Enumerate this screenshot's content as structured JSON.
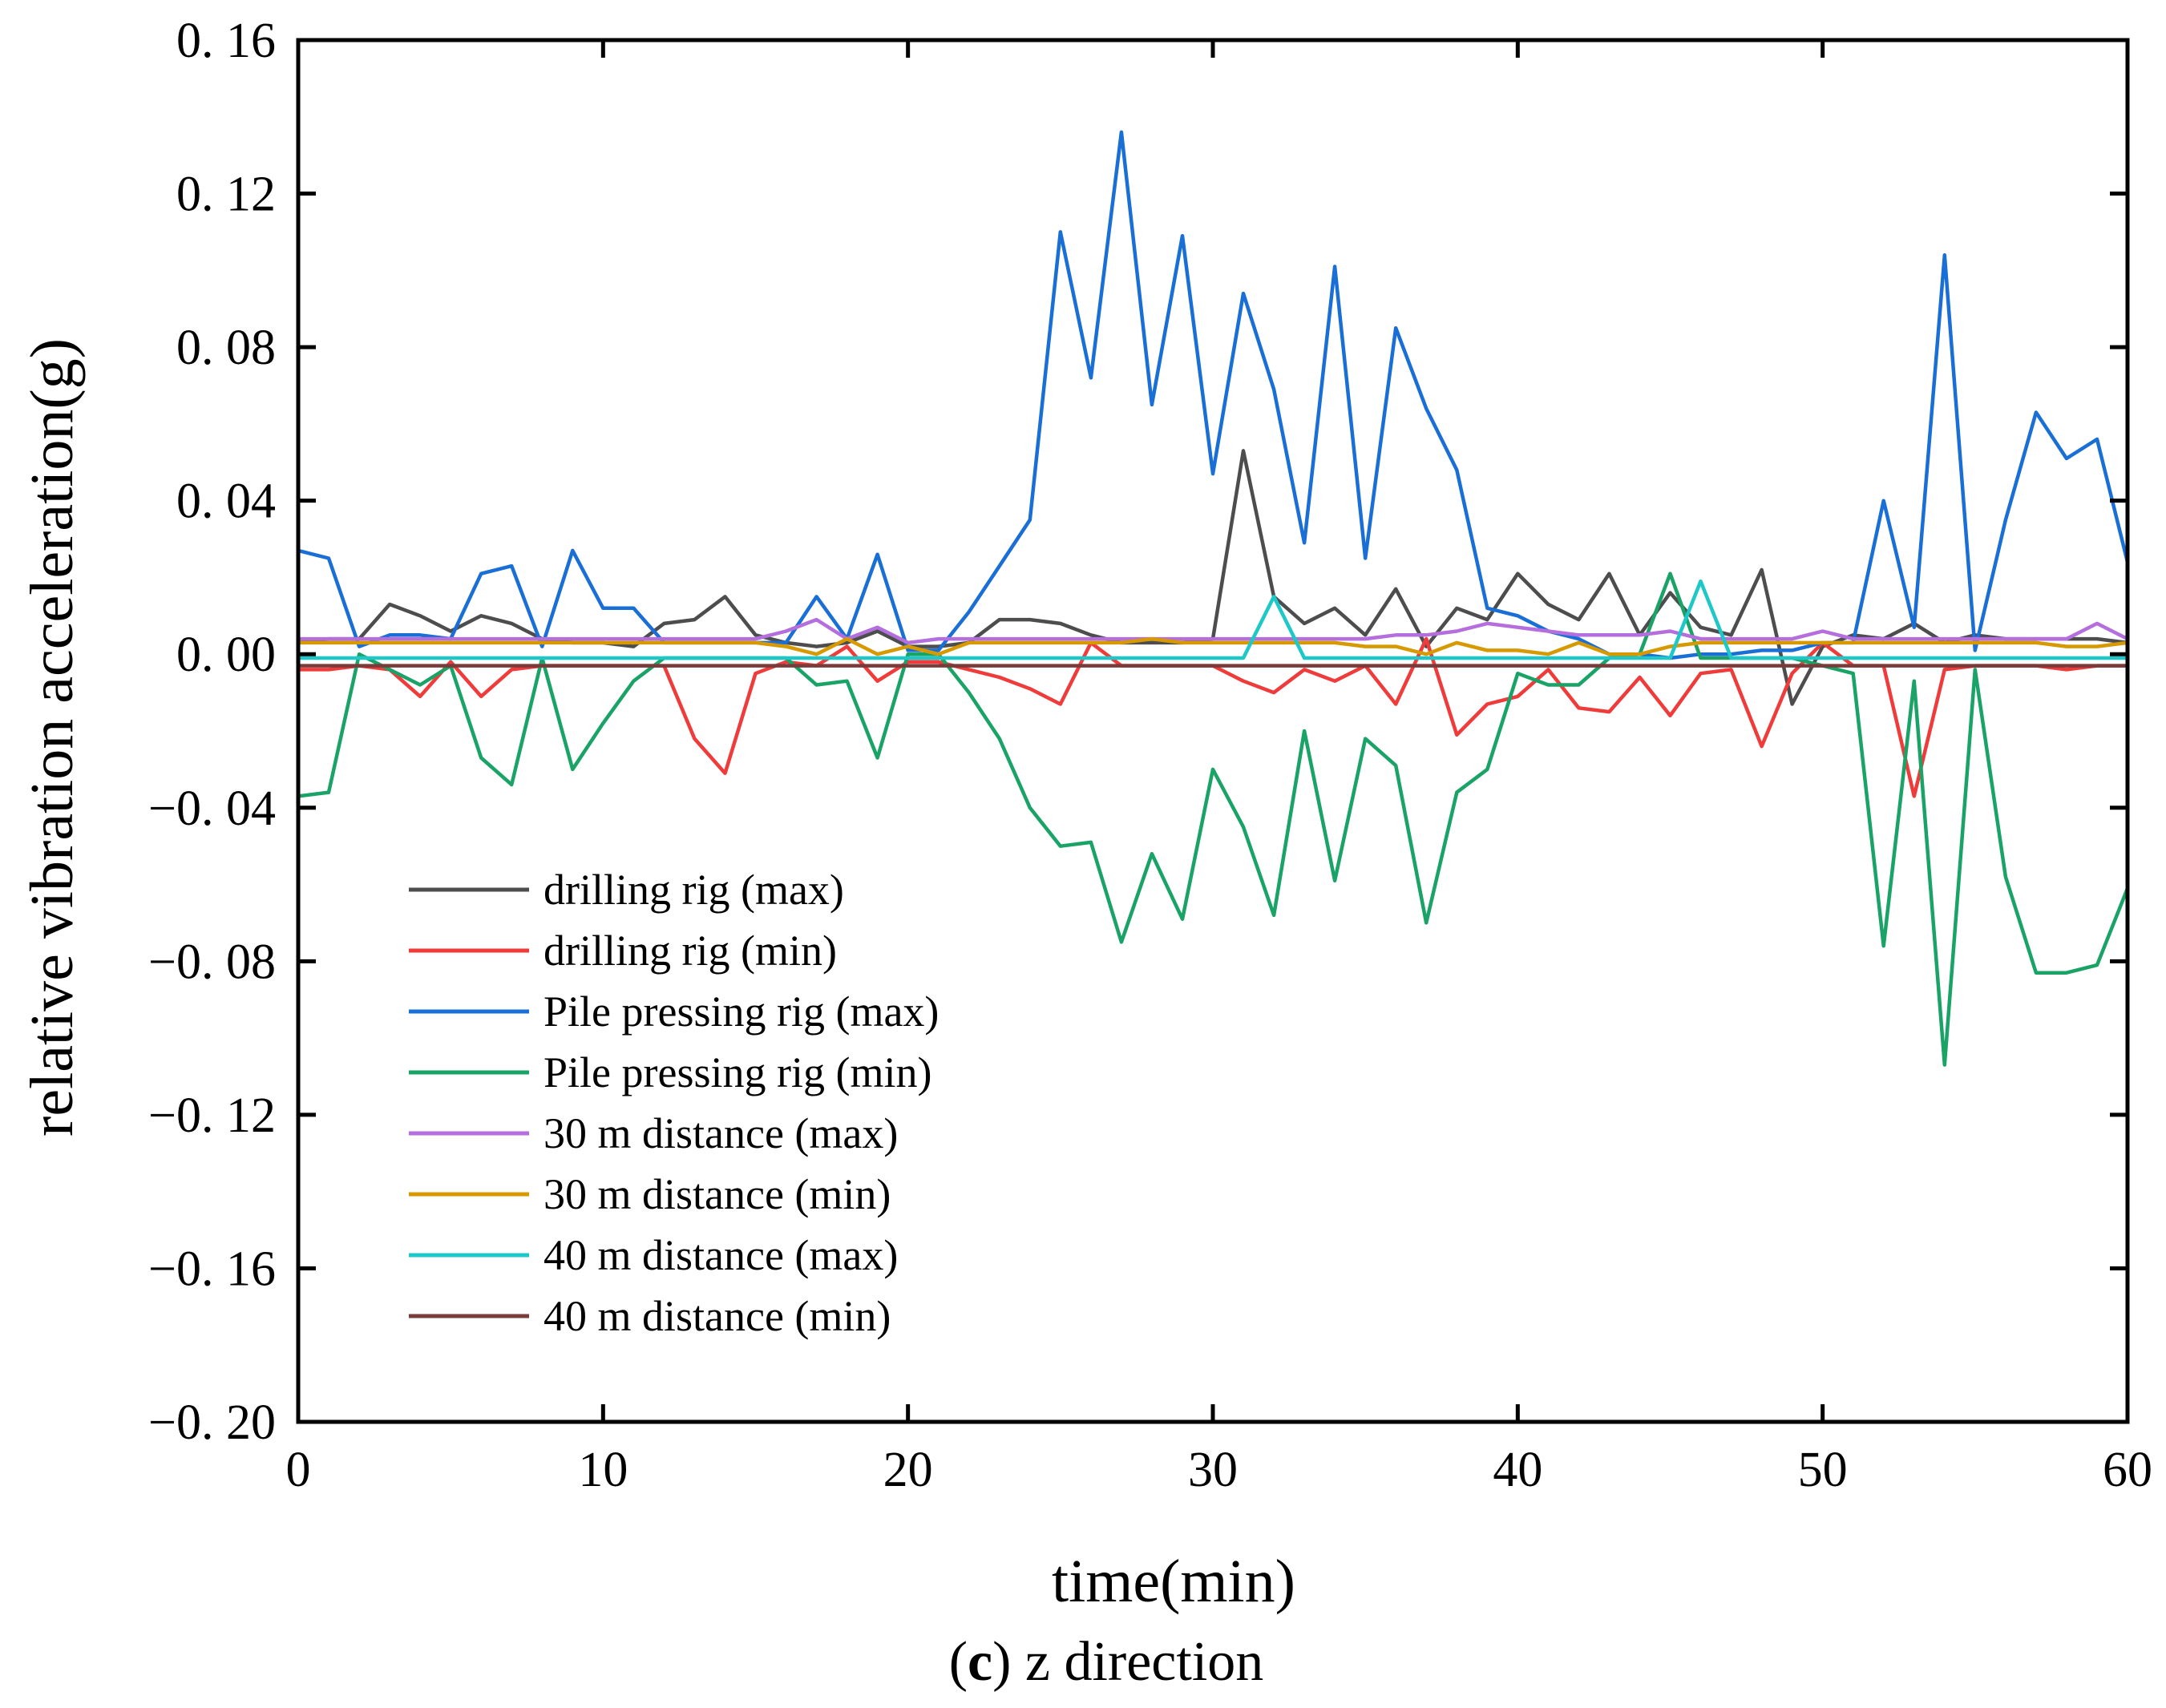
{
  "chart_data": {
    "type": "line",
    "title": "",
    "xlabel": "time(min)",
    "ylabel": "relative vibration acceleration(g)",
    "caption": {
      "label": "c",
      "open": "(",
      "close": ")",
      "text": " z direction"
    },
    "xlim": [
      0,
      60
    ],
    "ylim": [
      -0.2,
      0.16
    ],
    "xticks": [
      0,
      10,
      20,
      30,
      40,
      50,
      60
    ],
    "xtick_labels": [
      "0",
      "10",
      "20",
      "30",
      "40",
      "50",
      "60"
    ],
    "yticks": [
      0.16,
      0.12,
      0.08,
      0.04,
      0.0,
      -0.04,
      -0.08,
      -0.12,
      -0.16,
      -0.2
    ],
    "ytick_labels": [
      "0. 16",
      "0. 12",
      "0. 08",
      "0. 04",
      "0. 00",
      "−0. 04",
      "−0. 08",
      "−0. 12",
      "−0. 16",
      "−0. 20"
    ],
    "grid": false,
    "legend_position": "lower-left",
    "x": [
      0,
      1,
      2,
      3,
      4,
      5,
      6,
      7,
      8,
      9,
      10,
      11,
      12,
      13,
      14,
      15,
      16,
      17,
      18,
      19,
      20,
      21,
      22,
      23,
      24,
      25,
      26,
      27,
      28,
      29,
      30,
      31,
      32,
      33,
      34,
      35,
      36,
      37,
      38,
      39,
      40,
      41,
      42,
      43,
      44,
      45,
      46,
      47,
      48,
      49,
      50,
      51,
      52,
      53,
      54,
      55,
      56,
      57,
      58,
      59,
      60
    ],
    "series": [
      {
        "name": "drilling rig (max)",
        "color": "#4d4d4d",
        "values": [
          0.003,
          0.004,
          0.004,
          0.013,
          0.01,
          0.006,
          0.01,
          0.008,
          0.004,
          0.003,
          0.003,
          0.002,
          0.008,
          0.009,
          0.015,
          0.005,
          0.003,
          0.002,
          0.003,
          0.006,
          0.002,
          0.002,
          0.003,
          0.009,
          0.009,
          0.008,
          0.005,
          0.003,
          0.003,
          0.003,
          0.004,
          0.053,
          0.015,
          0.008,
          0.012,
          0.005,
          0.017,
          0.002,
          0.012,
          0.009,
          0.021,
          0.013,
          0.009,
          0.021,
          0.005,
          0.016,
          0.007,
          0.005,
          0.022,
          -0.013,
          0.002,
          0.005,
          0.004,
          0.008,
          0.003,
          0.005,
          0.004,
          0.004,
          0.004,
          0.004,
          0.003
        ]
      },
      {
        "name": "drilling rig (min)",
        "color": "#f03b3b",
        "values": [
          -0.004,
          -0.004,
          -0.003,
          -0.004,
          -0.011,
          -0.002,
          -0.011,
          -0.004,
          -0.003,
          -0.003,
          -0.003,
          -0.003,
          -0.003,
          -0.022,
          -0.031,
          -0.005,
          -0.002,
          -0.003,
          0.002,
          -0.007,
          -0.002,
          -0.002,
          -0.004,
          -0.006,
          -0.009,
          -0.013,
          0.003,
          -0.003,
          -0.003,
          -0.003,
          -0.003,
          -0.007,
          -0.01,
          -0.004,
          -0.007,
          -0.003,
          -0.013,
          0.004,
          -0.021,
          -0.013,
          -0.011,
          -0.004,
          -0.014,
          -0.015,
          -0.006,
          -0.016,
          -0.005,
          -0.004,
          -0.024,
          -0.005,
          0.003,
          -0.003,
          -0.003,
          -0.037,
          -0.004,
          -0.003,
          -0.003,
          -0.003,
          -0.004,
          -0.003,
          -0.003
        ]
      },
      {
        "name": "Pile pressing rig (max)",
        "color": "#1a6fd6",
        "values": [
          0.027,
          0.025,
          0.002,
          0.005,
          0.005,
          0.004,
          0.021,
          0.023,
          0.002,
          0.027,
          0.012,
          0.012,
          0.003,
          0.003,
          0.003,
          0.003,
          0.003,
          0.015,
          0.004,
          0.026,
          0.001,
          0.001,
          0.011,
          0.023,
          0.035,
          0.11,
          0.072,
          0.136,
          0.065,
          0.109,
          0.047,
          0.094,
          0.069,
          0.029,
          0.101,
          0.025,
          0.085,
          0.064,
          0.048,
          0.012,
          0.01,
          0.006,
          0.004,
          0.0,
          0.0,
          -0.001,
          0.0,
          0.0,
          0.001,
          0.001,
          0.003,
          0.003,
          0.04,
          0.007,
          0.104,
          0.001,
          0.035,
          0.063,
          0.051,
          0.056,
          0.024
        ]
      },
      {
        "name": "Pile pressing rig (min)",
        "color": "#1aa366",
        "values": [
          -0.037,
          -0.036,
          0.0,
          -0.004,
          -0.008,
          -0.003,
          -0.027,
          -0.034,
          -0.001,
          -0.03,
          -0.018,
          -0.007,
          -0.001,
          -0.001,
          -0.001,
          -0.001,
          -0.001,
          -0.008,
          -0.007,
          -0.027,
          0.0,
          0.0,
          -0.01,
          -0.022,
          -0.04,
          -0.05,
          -0.049,
          -0.075,
          -0.052,
          -0.069,
          -0.03,
          -0.045,
          -0.068,
          -0.02,
          -0.059,
          -0.022,
          -0.029,
          -0.07,
          -0.036,
          -0.03,
          -0.005,
          -0.008,
          -0.008,
          -0.001,
          0.0,
          0.021,
          -0.001,
          -0.001,
          -0.001,
          -0.001,
          -0.003,
          -0.005,
          -0.076,
          -0.007,
          -0.107,
          -0.004,
          -0.058,
          -0.083,
          -0.083,
          -0.081,
          -0.061
        ]
      },
      {
        "name": "30 m distance (max)",
        "color": "#b46ede",
        "values": [
          0.004,
          0.004,
          0.004,
          0.004,
          0.004,
          0.004,
          0.004,
          0.004,
          0.004,
          0.004,
          0.004,
          0.004,
          0.004,
          0.004,
          0.004,
          0.004,
          0.006,
          0.009,
          0.004,
          0.007,
          0.003,
          0.004,
          0.004,
          0.004,
          0.004,
          0.004,
          0.004,
          0.004,
          0.004,
          0.004,
          0.004,
          0.004,
          0.004,
          0.004,
          0.004,
          0.004,
          0.005,
          0.005,
          0.006,
          0.008,
          0.007,
          0.006,
          0.005,
          0.005,
          0.005,
          0.006,
          0.004,
          0.004,
          0.004,
          0.004,
          0.006,
          0.004,
          0.004,
          0.004,
          0.004,
          0.004,
          0.004,
          0.004,
          0.004,
          0.008,
          0.004
        ]
      },
      {
        "name": "30 m distance (min)",
        "color": "#d69a00",
        "values": [
          0.003,
          0.003,
          0.003,
          0.003,
          0.003,
          0.003,
          0.003,
          0.003,
          0.003,
          0.003,
          0.003,
          0.003,
          0.003,
          0.003,
          0.003,
          0.003,
          0.002,
          0.0,
          0.004,
          0.0,
          0.002,
          0.0,
          0.003,
          0.003,
          0.003,
          0.003,
          0.003,
          0.003,
          0.004,
          0.003,
          0.003,
          0.003,
          0.003,
          0.003,
          0.003,
          0.002,
          0.002,
          0.0,
          0.003,
          0.001,
          0.001,
          0.0,
          0.003,
          0.0,
          0.0,
          0.002,
          0.003,
          0.003,
          0.003,
          0.003,
          0.003,
          0.003,
          0.003,
          0.003,
          0.003,
          0.003,
          0.003,
          0.003,
          0.002,
          0.002,
          0.003
        ]
      },
      {
        "name": "40 m distance (max)",
        "color": "#1ec8c8",
        "values": [
          -0.001,
          -0.001,
          -0.001,
          -0.001,
          -0.001,
          -0.001,
          -0.001,
          -0.001,
          -0.001,
          -0.001,
          -0.001,
          -0.001,
          -0.001,
          -0.001,
          -0.001,
          -0.001,
          -0.001,
          -0.001,
          -0.001,
          -0.001,
          -0.001,
          -0.001,
          -0.001,
          -0.001,
          -0.001,
          -0.001,
          -0.001,
          -0.001,
          -0.001,
          -0.001,
          -0.001,
          -0.001,
          0.015,
          -0.001,
          -0.001,
          -0.001,
          -0.001,
          -0.001,
          -0.001,
          -0.001,
          -0.001,
          -0.001,
          -0.001,
          -0.001,
          -0.001,
          -0.001,
          0.019,
          -0.001,
          -0.001,
          -0.001,
          -0.001,
          -0.001,
          -0.001,
          -0.001,
          -0.001,
          -0.001,
          -0.001,
          -0.001,
          -0.001,
          -0.001,
          -0.001
        ]
      },
      {
        "name": "40 m distance (min)",
        "color": "#7a3b3b",
        "values": [
          -0.003,
          -0.003,
          -0.003,
          -0.003,
          -0.003,
          -0.003,
          -0.003,
          -0.003,
          -0.003,
          -0.003,
          -0.003,
          -0.003,
          -0.003,
          -0.003,
          -0.003,
          -0.003,
          -0.003,
          -0.003,
          -0.003,
          -0.003,
          -0.003,
          -0.003,
          -0.003,
          -0.003,
          -0.003,
          -0.003,
          -0.003,
          -0.003,
          -0.003,
          -0.003,
          -0.003,
          -0.003,
          -0.003,
          -0.003,
          -0.003,
          -0.003,
          -0.003,
          -0.003,
          -0.003,
          -0.003,
          -0.003,
          -0.003,
          -0.003,
          -0.003,
          -0.003,
          -0.003,
          -0.003,
          -0.003,
          -0.003,
          -0.003,
          -0.003,
          -0.003,
          -0.003,
          -0.003,
          -0.003,
          -0.003,
          -0.003,
          -0.003,
          -0.003,
          -0.003,
          -0.003
        ]
      }
    ]
  }
}
